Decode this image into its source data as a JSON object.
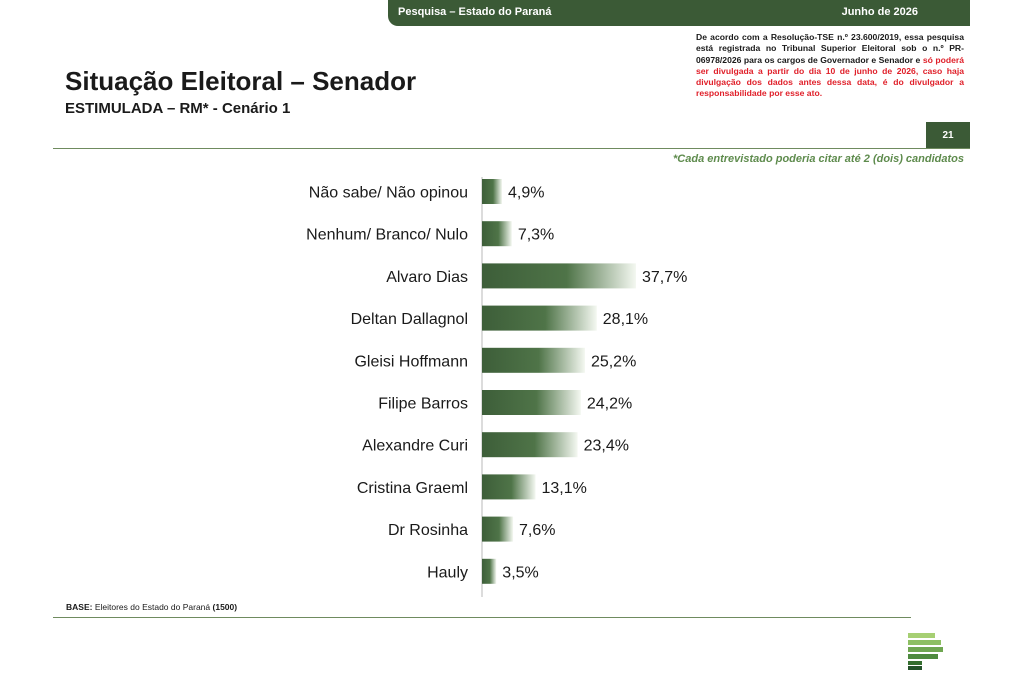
{
  "header": {
    "survey_label": "Pesquisa – Estado do Paraná",
    "date_label": "Junho de 2026"
  },
  "title": "Situação Eleitoral – Senador",
  "subtitle": "ESTIMULADA – RM* - Cenário 1",
  "legal_notice": {
    "text_normal": "De acordo com a Resolução-TSE n.º 23.600/2019, essa pesquisa está registrada no Tribunal Superior Eleitoral sob o n.º PR-06978/2026 para os cargos de Governador e Senador e ",
    "text_red": "só poderá ser divulgada a partir do dia 10 de junho de 2026, caso haja divulgação dos dados antes dessa data, é do divulgador a responsabilidade por esse ato."
  },
  "page_number": "21",
  "note": "*Cada entrevistado poderia citar até 2 (dois) candidatos",
  "base": {
    "label": "BASE:",
    "text": "Eleitores do Estado do Paraná",
    "count": "(1500)"
  },
  "colors": {
    "brand_green": "#3b5a36",
    "bar_dark": "#3d5e39",
    "bar_light": "#f4f8f1",
    "red_text": "#e0202a",
    "note_green": "#5e8b4d"
  },
  "chart_data": {
    "type": "bar",
    "orientation": "horizontal",
    "categories": [
      "Não sabe/ Não opinou",
      "Nenhum/ Branco/ Nulo",
      "Alvaro Dias",
      "Deltan Dallagnol",
      "Gleisi Hoffmann",
      "Filipe Barros",
      "Alexandre Curi",
      "Cristina Graeml",
      "Dr Rosinha",
      "Hauly"
    ],
    "values": [
      4.9,
      7.3,
      37.7,
      28.1,
      25.2,
      24.2,
      23.4,
      13.1,
      7.6,
      3.5
    ],
    "value_labels": [
      "4,9%",
      "7,3%",
      "37,7%",
      "28,1%",
      "25,2%",
      "24,2%",
      "23,4%",
      "13,1%",
      "7,6%",
      "3,5%"
    ],
    "unit": "%",
    "xlim": [
      0,
      40
    ],
    "grid": false
  }
}
